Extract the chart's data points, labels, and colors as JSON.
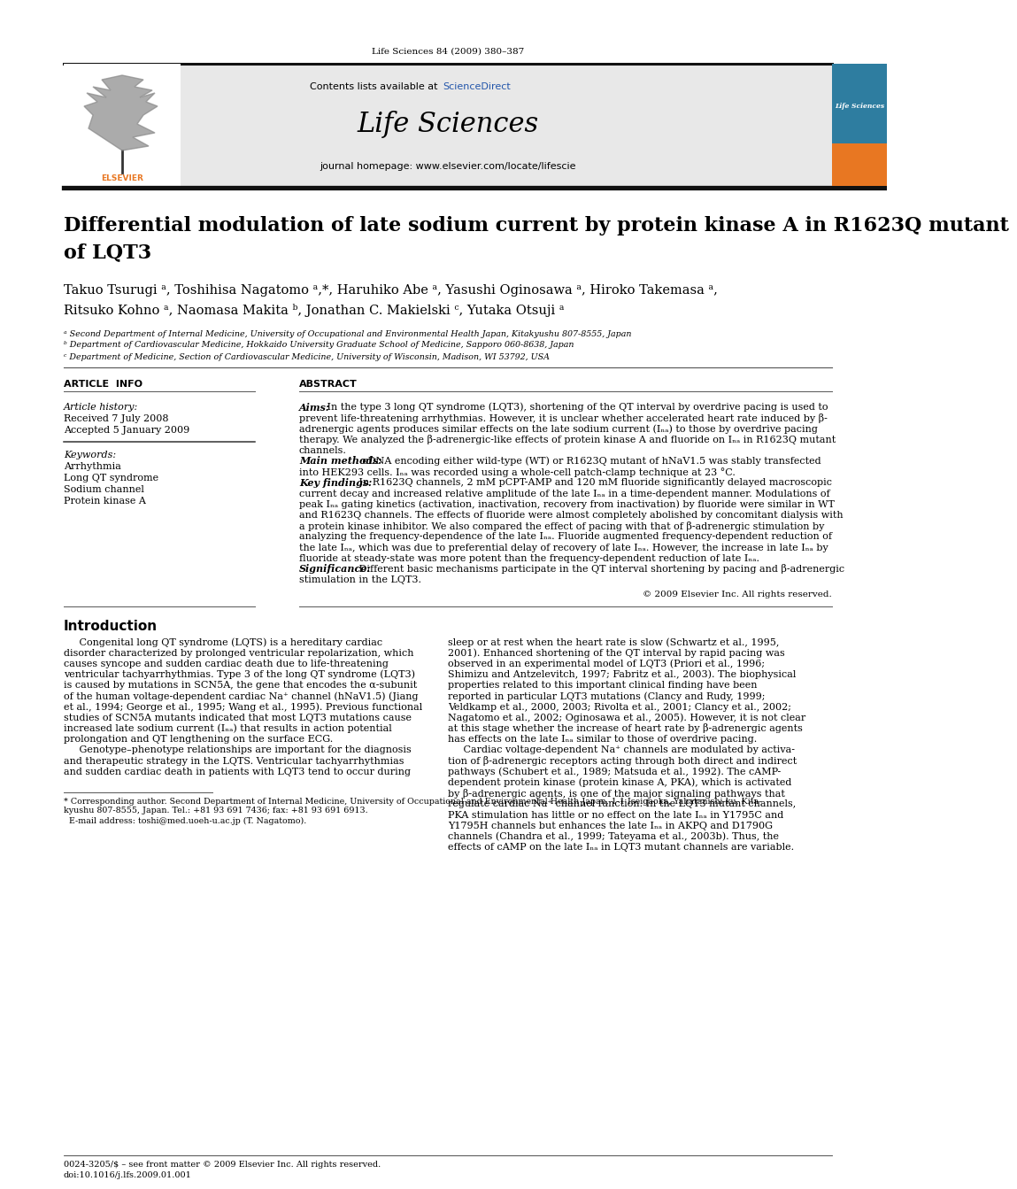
{
  "page_header": "Life Sciences 84 (2009) 380–387",
  "journal_name": "Life Sciences",
  "contents_line": "Contents lists available at ScienceDirect",
  "journal_homepage": "journal homepage: www.elsevier.com/locate/lifescie",
  "title_line1": "Differential modulation of late sodium current by protein kinase A in R1623Q mutant",
  "title_line2": "of LQT3",
  "authors_line1": "Takuo Tsurugi ᵃ, Toshihisa Nagatomo ᵃ,*, Haruhiko Abe ᵃ, Yasushi Oginosawa ᵃ, Hiroko Takemasa ᵃ,",
  "authors_line2": "Ritsuko Kohno ᵃ, Naomasa Makita ᵇ, Jonathan C. Makielski ᶜ, Yutaka Otsuji ᵃ",
  "affil_a": "ᵃ Second Department of Internal Medicine, University of Occupational and Environmental Health Japan, Kitakyushu 807-8555, Japan",
  "affil_b": "ᵇ Department of Cardiovascular Medicine, Hokkaido University Graduate School of Medicine, Sapporo 060-8638, Japan",
  "affil_c": "ᶜ Department of Medicine, Section of Cardiovascular Medicine, University of Wisconsin, Madison, WI 53792, USA",
  "article_info_label": "ARTICLE  INFO",
  "abstract_label": "ABSTRACT",
  "article_history_label": "Article history:",
  "received": "Received 7 July 2008",
  "accepted": "Accepted 5 January 2009",
  "keywords_label": "Keywords:",
  "keywords": [
    "Arrhythmia",
    "Long QT syndrome",
    "Sodium channel",
    "Protein kinase A"
  ],
  "copyright": "© 2009 Elsevier Inc. All rights reserved.",
  "intro_header": "Introduction",
  "footnote_line1": "* Corresponding author. Second Department of Internal Medicine, University of Occupational and Environmental Health Japan, 1-1 Iseigaoka, Yahatanishi-ku, Kita-",
  "footnote_line2": "kyushu 807-8555, Japan. Tel.: +81 93 691 7436; fax: +81 93 691 6913.",
  "footnote_line3": "  E-mail address: toshi@med.uoeh-u.ac.jp (T. Nagatomo).",
  "bottom_line1": "0024-3205/$ – see front matter © 2009 Elsevier Inc. All rights reserved.",
  "bottom_line2": "doi:10.1016/j.lfs.2009.01.001",
  "background_color": "#ffffff",
  "journal_header_bg": "#e8e8e8",
  "elsevier_orange": "#e87722",
  "link_color": "#2255aa",
  "text_color": "#000000",
  "abstract_lines": [
    [
      "Aims:",
      " In the type 3 long QT syndrome (LQT3), shortening of the QT interval by overdrive pacing is used to"
    ],
    [
      "",
      "prevent life-threatening arrhythmias. However, it is unclear whether accelerated heart rate induced by β-"
    ],
    [
      "",
      "adrenergic agents produces similar effects on the late sodium current (Iₙₐ) to those by overdrive pacing"
    ],
    [
      "",
      "therapy. We analyzed the β-adrenergic-like effects of protein kinase A and fluoride on Iₙₐ in R1623Q mutant"
    ],
    [
      "",
      "channels."
    ],
    [
      "Main methods:",
      " cDNA encoding either wild-type (WT) or R1623Q mutant of hNaV1.5 was stably transfected"
    ],
    [
      "",
      "into HEK293 cells. Iₙₐ was recorded using a whole-cell patch-clamp technique at 23 °C."
    ],
    [
      "Key findings:",
      " In R1623Q channels, 2 mM pCPT-AMP and 120 mM fluoride significantly delayed macroscopic"
    ],
    [
      "",
      "current decay and increased relative amplitude of the late Iₙₐ in a time-dependent manner. Modulations of"
    ],
    [
      "",
      "peak Iₙₐ gating kinetics (activation, inactivation, recovery from inactivation) by fluoride were similar in WT"
    ],
    [
      "",
      "and R1623Q channels. The effects of fluoride were almost completely abolished by concomitant dialysis with"
    ],
    [
      "",
      "a protein kinase inhibitor. We also compared the effect of pacing with that of β-adrenergic stimulation by"
    ],
    [
      "",
      "analyzing the frequency-dependence of the late Iₙₐ. Fluoride augmented frequency-dependent reduction of"
    ],
    [
      "",
      "the late Iₙₐ, which was due to preferential delay of recovery of late Iₙₐ. However, the increase in late Iₙₐ by"
    ],
    [
      "",
      "fluoride at steady-state was more potent than the frequency-dependent reduction of late Iₙₐ."
    ],
    [
      "Significance:",
      " Different basic mechanisms participate in the QT interval shortening by pacing and β-adrenergic"
    ],
    [
      "",
      "stimulation in the LQT3."
    ]
  ],
  "intro_col1_lines": [
    "     Congenital long QT syndrome (LQTS) is a hereditary cardiac",
    "disorder characterized by prolonged ventricular repolarization, which",
    "causes syncope and sudden cardiac death due to life-threatening",
    "ventricular tachyarrhythmias. Type 3 of the long QT syndrome (LQT3)",
    "is caused by mutations in SCN5A, the gene that encodes the α-subunit",
    "of the human voltage-dependent cardiac Na⁺ channel (hNaV1.5) (Jiang",
    "et al., 1994; George et al., 1995; Wang et al., 1995). Previous functional",
    "studies of SCN5A mutants indicated that most LQT3 mutations cause",
    "increased late sodium current (Iₙₐ) that results in action potential",
    "prolongation and QT lengthening on the surface ECG.",
    "     Genotype–phenotype relationships are important for the diagnosis",
    "and therapeutic strategy in the LQTS. Ventricular tachyarrhythmias",
    "and sudden cardiac death in patients with LQT3 tend to occur during"
  ],
  "intro_col2_lines": [
    "sleep or at rest when the heart rate is slow (Schwartz et al., 1995,",
    "2001). Enhanced shortening of the QT interval by rapid pacing was",
    "observed in an experimental model of LQT3 (Priori et al., 1996;",
    "Shimizu and Antzelevitch, 1997; Fabritz et al., 2003). The biophysical",
    "properties related to this important clinical finding have been",
    "reported in particular LQT3 mutations (Clancy and Rudy, 1999;",
    "Veldkamp et al., 2000, 2003; Rivolta et al., 2001; Clancy et al., 2002;",
    "Nagatomo et al., 2002; Oginosawa et al., 2005). However, it is not clear",
    "at this stage whether the increase of heart rate by β-adrenergic agents",
    "has effects on the late Iₙₐ similar to those of overdrive pacing.",
    "     Cardiac voltage-dependent Na⁺ channels are modulated by activa-",
    "tion of β-adrenergic receptors acting through both direct and indirect",
    "pathways (Schubert et al., 1989; Matsuda et al., 1992). The cAMP-",
    "dependent protein kinase (protein kinase A, PKA), which is activated",
    "by β-adrenergic agents, is one of the major signaling pathways that",
    "regulate cardiac Na⁺ channel function. In the LQT3 mutant channels,",
    "PKA stimulation has little or no effect on the late Iₙₐ in Y1795C and",
    "Y1795H channels but enhances the late Iₙₐ in AKPQ and D1790G",
    "channels (Chandra et al., 1999; Tateyama et al., 2003b). Thus, the",
    "effects of cAMP on the late Iₙₐ in LQT3 mutant channels are variable."
  ]
}
